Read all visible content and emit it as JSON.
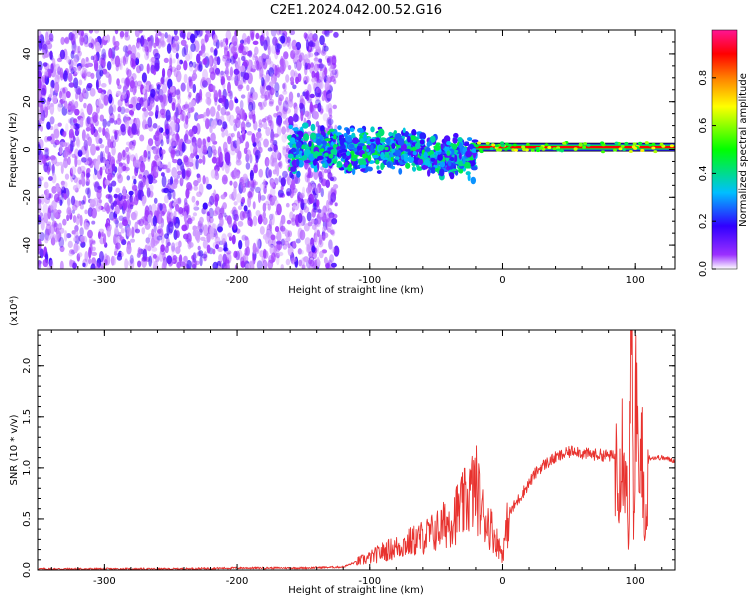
{
  "title": "C2E1.2024.042.00.52.G16",
  "chart_data": [
    {
      "type": "heatmap",
      "xlabel": "Height of straight line (km)",
      "ylabel": "Frequency (Hz)",
      "xlim": [
        -350,
        130
      ],
      "ylim": [
        -50,
        50
      ],
      "xticks": [
        -300,
        -200,
        -100,
        0,
        100
      ],
      "xtick_labels": [
        "-300",
        "-200",
        "-100",
        "0",
        "100"
      ],
      "yticks": [
        -40,
        -20,
        0,
        20,
        40
      ],
      "ytick_labels": [
        "-40",
        "-20",
        "0",
        "20",
        "40"
      ],
      "colorbar": {
        "label": "Normalized spectral amplitude",
        "range": [
          0,
          1
        ],
        "ticks": [
          0.0,
          0.2,
          0.4,
          0.6,
          0.8
        ],
        "tick_labels": [
          "0.0",
          "0.2",
          "0.4",
          "0.6",
          "0.8"
        ],
        "colormap": [
          "#ffffff",
          "#7f00ff",
          "#0000ff",
          "#00bfff",
          "#00ff00",
          "#ffff00",
          "#ff8000",
          "#ff0000",
          "#ff1493"
        ]
      },
      "regions": [
        {
          "description_x": [
            -350,
            -125
          ],
          "freq_spread": 50,
          "amplitude": 0.15
        },
        {
          "description_x": [
            -160,
            -20
          ],
          "freq_center": 0,
          "freq_spread": 8,
          "amplitude": 0.35
        },
        {
          "description_x": [
            -20,
            130
          ],
          "freq_center": 1,
          "freq_spread": 2,
          "amplitude": 0.9
        }
      ]
    },
    {
      "type": "line",
      "xlabel": "Height of straight line (km)",
      "ylabel": "SNR (10 * v/v)",
      "ylabel_multiplier": "(x10⁴)",
      "xlim": [
        -350,
        130
      ],
      "ylim": [
        0,
        2.35
      ],
      "xticks": [
        -300,
        -200,
        -100,
        0,
        100
      ],
      "xtick_labels": [
        "-300",
        "-200",
        "-100",
        "0",
        "100"
      ],
      "yticks": [
        0.0,
        0.5,
        1.0,
        1.5,
        2.0
      ],
      "ytick_labels": [
        "0.0",
        "0.5",
        "1.0",
        "1.5",
        "2.0"
      ],
      "grid": false,
      "series": [
        {
          "color": "#e8322e",
          "x": [
            -350,
            -300,
            -250,
            -200,
            -150,
            -120,
            -110,
            -100,
            -90,
            -80,
            -70,
            -60,
            -50,
            -40,
            -30,
            -25,
            -20,
            -15,
            -10,
            -5,
            0,
            5,
            10,
            15,
            20,
            25,
            30,
            40,
            50,
            55,
            60,
            70,
            80,
            88,
            92,
            95,
            97,
            99,
            101,
            103,
            105,
            107,
            110,
            120,
            130
          ],
          "y": [
            0.01,
            0.01,
            0.01,
            0.02,
            0.02,
            0.03,
            0.08,
            0.12,
            0.18,
            0.22,
            0.27,
            0.32,
            0.38,
            0.48,
            0.62,
            0.72,
            0.82,
            0.55,
            0.45,
            0.3,
            0.15,
            0.55,
            0.65,
            0.75,
            0.85,
            0.95,
            1.02,
            1.1,
            1.15,
            1.18,
            1.14,
            1.13,
            1.12,
            1.1,
            1.35,
            0.3,
            2.2,
            0.4,
            1.9,
            0.5,
            1.6,
            0.2,
            1.1,
            1.1,
            1.07
          ]
        }
      ]
    }
  ]
}
